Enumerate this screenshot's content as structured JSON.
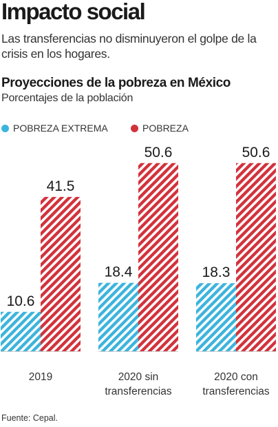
{
  "headline": "Impacto social",
  "lede": "Las transferencias no disminuyeron el golpe de la crisis en los hogares.",
  "source": "Fuente: Cepal.",
  "colors": {
    "pobreza_extrema": "#3cb4dc",
    "pobreza": "#d2323c"
  },
  "chart_data": {
    "type": "bar",
    "title": "Proyecciones de la pobreza en México",
    "subtitle": "Porcentajes de la población",
    "categories": [
      [
        "2019"
      ],
      [
        "2020 sin",
        "transferencias"
      ],
      [
        "2020 con",
        "transferencias"
      ]
    ],
    "series": [
      {
        "name": "POBREZA EXTREMA",
        "values": [
          10.6,
          18.4,
          18.3
        ],
        "labels": [
          "10.6",
          "18.4",
          "18.3"
        ]
      },
      {
        "name": "POBREZA",
        "values": [
          41.5,
          50.6,
          50.6
        ],
        "labels": [
          "41.5",
          "50.6",
          "50.6"
        ]
      }
    ],
    "legend": "top-left",
    "grid": false
  }
}
